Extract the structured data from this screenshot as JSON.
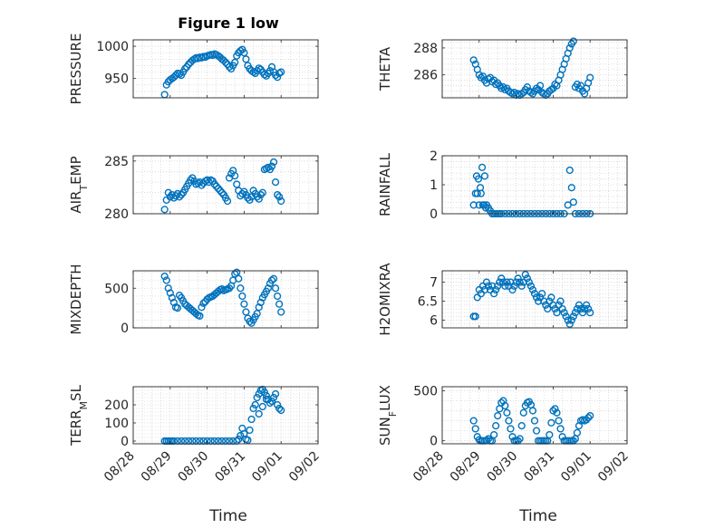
{
  "figure_title": "Figure 1 low",
  "colors": {
    "marker": "#0072BD",
    "axis": "#262626",
    "grid": "#c8c8c8"
  },
  "x_ticks": [
    "08/28",
    "08/29",
    "08/30",
    "08/31",
    "09/01",
    "09/02"
  ],
  "chart_data": [
    {
      "type": "scatter",
      "panel": 1,
      "ylabel": "PRESSURE",
      "ylim": [
        920,
        1010
      ],
      "yticks": [
        950,
        1000
      ],
      "xlim": [
        0,
        5
      ],
      "grid": "on",
      "marker": "open-circle",
      "x": [
        0.85,
        0.9,
        0.95,
        1.0,
        1.05,
        1.1,
        1.15,
        1.2,
        1.25,
        1.3,
        1.35,
        1.4,
        1.45,
        1.5,
        1.55,
        1.6,
        1.65,
        1.7,
        1.75,
        1.8,
        1.85,
        1.9,
        1.95,
        2.0,
        2.05,
        2.1,
        2.15,
        2.2,
        2.25,
        2.3,
        2.35,
        2.4,
        2.45,
        2.5,
        2.55,
        2.6,
        2.65,
        2.7,
        2.75,
        2.8,
        2.85,
        2.9,
        2.95,
        3.0,
        3.05,
        3.1,
        3.15,
        3.2,
        3.25,
        3.3,
        3.35,
        3.4,
        3.45,
        3.5,
        3.55,
        3.6,
        3.65,
        3.7,
        3.75,
        3.8,
        3.85,
        3.9,
        3.95,
        4.0
      ],
      "y": [
        925,
        940,
        945,
        948,
        950,
        952,
        955,
        958,
        957,
        955,
        960,
        965,
        968,
        972,
        975,
        978,
        980,
        982,
        981,
        983,
        982,
        984,
        983,
        985,
        986,
        987,
        986,
        988,
        987,
        985,
        983,
        980,
        978,
        975,
        972,
        968,
        965,
        970,
        975,
        985,
        990,
        993,
        995,
        990,
        980,
        970,
        965,
        962,
        960,
        958,
        962,
        966,
        964,
        960,
        956,
        954,
        958,
        962,
        968,
        960,
        955,
        952,
        958,
        960
      ]
    },
    {
      "type": "scatter",
      "panel": 2,
      "ylabel": "THETA",
      "ylim": [
        284.3,
        288.6
      ],
      "yticks": [
        286,
        288
      ],
      "xlim": [
        0,
        5
      ],
      "grid": "on",
      "marker": "open-circle",
      "x": [
        0.85,
        0.9,
        0.95,
        1.0,
        1.05,
        1.1,
        1.15,
        1.2,
        1.25,
        1.3,
        1.35,
        1.4,
        1.45,
        1.5,
        1.55,
        1.6,
        1.65,
        1.7,
        1.75,
        1.8,
        1.85,
        1.9,
        1.95,
        2.0,
        2.05,
        2.1,
        2.15,
        2.2,
        2.25,
        2.3,
        2.35,
        2.4,
        2.45,
        2.5,
        2.55,
        2.6,
        2.65,
        2.7,
        2.75,
        2.8,
        2.85,
        2.9,
        2.95,
        3.0,
        3.05,
        3.1,
        3.15,
        3.2,
        3.25,
        3.3,
        3.35,
        3.4,
        3.45,
        3.5,
        3.55,
        3.6,
        3.65,
        3.7,
        3.75,
        3.8,
        3.85,
        3.9,
        3.95,
        4.0
      ],
      "y": [
        287.1,
        286.8,
        286.4,
        286.0,
        285.8,
        285.9,
        285.6,
        285.4,
        285.7,
        285.8,
        285.5,
        285.6,
        285.3,
        285.4,
        285.2,
        285.0,
        285.1,
        284.9,
        285.0,
        284.8,
        284.7,
        284.6,
        284.7,
        284.5,
        284.6,
        284.5,
        284.6,
        284.7,
        284.9,
        285.1,
        284.8,
        284.7,
        284.6,
        284.8,
        285.0,
        284.9,
        285.2,
        284.7,
        284.6,
        284.5,
        284.6,
        284.8,
        284.9,
        285.0,
        285.3,
        285.2,
        285.6,
        286.0,
        286.4,
        286.8,
        287.2,
        287.6,
        288.0,
        288.3,
        288.5,
        285.1,
        285.3,
        285.0,
        285.2,
        284.8,
        284.6,
        285.0,
        285.4,
        285.8
      ]
    },
    {
      "type": "scatter",
      "panel": 3,
      "ylabel": "AIR_TEMP",
      "ylim": [
        280,
        285.5
      ],
      "yticks": [
        280,
        285
      ],
      "xlim": [
        0,
        5
      ],
      "grid": "on",
      "marker": "open-circle",
      "x": [
        0.85,
        0.9,
        0.95,
        1.0,
        1.05,
        1.1,
        1.15,
        1.2,
        1.25,
        1.3,
        1.35,
        1.4,
        1.45,
        1.5,
        1.55,
        1.6,
        1.65,
        1.7,
        1.75,
        1.8,
        1.85,
        1.9,
        1.95,
        2.0,
        2.05,
        2.1,
        2.15,
        2.2,
        2.25,
        2.3,
        2.35,
        2.4,
        2.45,
        2.5,
        2.55,
        2.6,
        2.65,
        2.7,
        2.75,
        2.8,
        2.85,
        2.9,
        2.95,
        3.0,
        3.05,
        3.1,
        3.15,
        3.2,
        3.25,
        3.3,
        3.35,
        3.4,
        3.45,
        3.5,
        3.55,
        3.6,
        3.65,
        3.7,
        3.75,
        3.8,
        3.85,
        3.9,
        3.95,
        4.0
      ],
      "y": [
        280.4,
        281.3,
        282.0,
        281.6,
        281.8,
        281.5,
        281.7,
        281.9,
        281.6,
        281.8,
        282.0,
        282.3,
        282.6,
        282.9,
        283.2,
        283.4,
        283.1,
        282.8,
        282.9,
        283.0,
        282.7,
        282.9,
        283.1,
        283.2,
        283.0,
        283.2,
        283.1,
        282.8,
        282.6,
        282.4,
        282.2,
        282.0,
        281.8,
        281.5,
        281.2,
        283.4,
        283.8,
        284.1,
        283.6,
        282.8,
        282.2,
        281.7,
        281.9,
        282.1,
        281.8,
        281.5,
        281.3,
        281.6,
        282.2,
        281.9,
        281.6,
        281.4,
        281.8,
        282.0,
        284.2,
        284.3,
        284.4,
        284.2,
        284.5,
        284.9,
        283.0,
        281.8,
        281.6,
        281.2
      ]
    },
    {
      "type": "scatter",
      "panel": 4,
      "ylabel": "RAINFALL",
      "ylim": [
        0,
        2
      ],
      "yticks": [
        0,
        1,
        2
      ],
      "xlim": [
        0,
        5
      ],
      "grid": "on",
      "marker": "open-circle",
      "x": [
        0.85,
        0.9,
        0.93,
        0.95,
        0.98,
        1.0,
        1.03,
        1.05,
        1.08,
        1.1,
        1.13,
        1.15,
        1.18,
        1.2,
        1.25,
        1.3,
        1.35,
        1.4,
        1.45,
        1.5,
        1.55,
        1.6,
        1.7,
        1.8,
        1.9,
        2.0,
        2.1,
        2.2,
        2.3,
        2.4,
        2.5,
        2.6,
        2.7,
        2.8,
        2.9,
        3.0,
        3.1,
        3.2,
        3.3,
        3.4,
        3.45,
        3.5,
        3.55,
        3.6,
        3.7,
        3.8,
        3.9,
        4.0
      ],
      "y": [
        0.3,
        0.7,
        1.3,
        0.7,
        1.2,
        0.3,
        0.9,
        0.7,
        1.6,
        0.3,
        0.3,
        1.3,
        0.2,
        0.3,
        0.2,
        0.1,
        0,
        0,
        0,
        0,
        0,
        0,
        0,
        0,
        0,
        0,
        0,
        0,
        0,
        0,
        0,
        0,
        0,
        0,
        0,
        0,
        0,
        0,
        0,
        0.3,
        1.5,
        0.9,
        0.4,
        0,
        0,
        0,
        0,
        0
      ]
    },
    {
      "type": "scatter",
      "panel": 5,
      "ylabel": "MIXDEPTH",
      "ylim": [
        0,
        720
      ],
      "yticks": [
        0,
        500
      ],
      "xlim": [
        0,
        5
      ],
      "grid": "on",
      "marker": "open-circle",
      "x": [
        0.85,
        0.9,
        0.95,
        1.0,
        1.05,
        1.1,
        1.15,
        1.2,
        1.25,
        1.3,
        1.35,
        1.4,
        1.45,
        1.5,
        1.55,
        1.6,
        1.65,
        1.7,
        1.75,
        1.8,
        1.85,
        1.9,
        1.95,
        2.0,
        2.05,
        2.1,
        2.15,
        2.2,
        2.25,
        2.3,
        2.35,
        2.4,
        2.45,
        2.5,
        2.55,
        2.6,
        2.65,
        2.7,
        2.75,
        2.8,
        2.85,
        2.9,
        2.95,
        3.0,
        3.05,
        3.1,
        3.15,
        3.2,
        3.25,
        3.3,
        3.35,
        3.4,
        3.45,
        3.5,
        3.55,
        3.6,
        3.65,
        3.7,
        3.75,
        3.8,
        3.85,
        3.9,
        3.95,
        4.0
      ],
      "y": [
        650,
        600,
        500,
        440,
        380,
        320,
        260,
        250,
        410,
        380,
        340,
        300,
        280,
        260,
        240,
        220,
        200,
        180,
        160,
        150,
        260,
        310,
        330,
        360,
        380,
        390,
        400,
        420,
        440,
        460,
        480,
        490,
        470,
        480,
        490,
        500,
        530,
        600,
        680,
        700,
        620,
        500,
        400,
        300,
        200,
        120,
        80,
        60,
        100,
        140,
        180,
        260,
        320,
        380,
        420,
        460,
        500,
        560,
        600,
        620,
        500,
        400,
        300,
        200
      ]
    },
    {
      "type": "scatter",
      "panel": 6,
      "ylabel": "H2OMIXRA",
      "ylim": [
        5.8,
        7.3
      ],
      "yticks": [
        6,
        6.5,
        7
      ],
      "xlim": [
        0,
        5
      ],
      "grid": "on",
      "marker": "open-circle",
      "x": [
        0.85,
        0.9,
        0.95,
        1.0,
        1.05,
        1.1,
        1.15,
        1.2,
        1.25,
        1.3,
        1.35,
        1.4,
        1.45,
        1.5,
        1.55,
        1.6,
        1.65,
        1.7,
        1.75,
        1.8,
        1.85,
        1.9,
        1.95,
        2.0,
        2.05,
        2.1,
        2.15,
        2.2,
        2.25,
        2.3,
        2.35,
        2.4,
        2.45,
        2.5,
        2.55,
        2.6,
        2.65,
        2.7,
        2.75,
        2.8,
        2.85,
        2.9,
        2.95,
        3.0,
        3.05,
        3.1,
        3.15,
        3.2,
        3.25,
        3.3,
        3.35,
        3.4,
        3.45,
        3.5,
        3.55,
        3.6,
        3.65,
        3.7,
        3.75,
        3.8,
        3.85,
        3.9,
        3.95,
        4.0
      ],
      "y": [
        6.1,
        6.1,
        6.6,
        6.8,
        6.7,
        6.9,
        6.8,
        7.0,
        6.9,
        6.8,
        6.9,
        6.7,
        6.8,
        6.9,
        7.0,
        7.1,
        7.0,
        6.9,
        7.0,
        6.9,
        7.0,
        6.8,
        6.9,
        7.0,
        7.1,
        7.0,
        6.9,
        7.0,
        7.2,
        7.1,
        7.0,
        6.9,
        6.8,
        6.7,
        6.6,
        6.5,
        6.6,
        6.7,
        6.5,
        6.4,
        6.3,
        6.5,
        6.6,
        6.4,
        6.3,
        6.2,
        6.4,
        6.5,
        6.3,
        6.2,
        6.1,
        6.0,
        5.9,
        6.0,
        6.1,
        6.2,
        6.3,
        6.4,
        6.3,
        6.2,
        6.3,
        6.4,
        6.3,
        6.2
      ]
    },
    {
      "type": "scatter",
      "panel": 7,
      "ylabel": "TERR_MSL",
      "ylim": [
        -15,
        300
      ],
      "yticks": [
        0,
        100,
        200
      ],
      "xlim": [
        0,
        5
      ],
      "grid": "on",
      "marker": "open-circle",
      "x": [
        0.85,
        0.9,
        0.95,
        1.0,
        1.05,
        1.1,
        1.2,
        1.3,
        1.4,
        1.5,
        1.6,
        1.7,
        1.8,
        1.9,
        2.0,
        2.1,
        2.2,
        2.3,
        2.4,
        2.5,
        2.6,
        2.7,
        2.8,
        2.85,
        2.9,
        2.95,
        3.0,
        3.05,
        3.1,
        3.15,
        3.2,
        3.25,
        3.3,
        3.35,
        3.4,
        3.45,
        3.5,
        3.55,
        3.6,
        3.65,
        3.7,
        3.75,
        3.8,
        3.85,
        3.9,
        3.95,
        4.0,
        3.4,
        3.5,
        3.6
      ],
      "y": [
        0,
        0,
        0,
        0,
        0,
        0,
        0,
        0,
        0,
        0,
        0,
        0,
        0,
        0,
        0,
        0,
        0,
        0,
        0,
        0,
        0,
        0,
        0,
        10,
        30,
        70,
        40,
        10,
        5,
        60,
        120,
        180,
        200,
        240,
        260,
        280,
        285,
        270,
        250,
        230,
        210,
        220,
        240,
        260,
        200,
        180,
        170,
        150,
        190,
        230
      ]
    },
    {
      "type": "scatter",
      "panel": 8,
      "ylabel": "SUN_FLUX",
      "ylim": [
        -30,
        540
      ],
      "yticks": [
        0,
        500
      ],
      "xlim": [
        0,
        5
      ],
      "grid": "on",
      "marker": "open-circle",
      "x": [
        0.85,
        0.9,
        0.95,
        1.0,
        1.05,
        1.1,
        1.15,
        1.2,
        1.25,
        1.3,
        1.35,
        1.4,
        1.45,
        1.5,
        1.55,
        1.6,
        1.65,
        1.7,
        1.75,
        1.8,
        1.85,
        1.9,
        1.95,
        2.0,
        2.05,
        2.1,
        2.15,
        2.2,
        2.25,
        2.3,
        2.35,
        2.4,
        2.45,
        2.5,
        2.55,
        2.6,
        2.65,
        2.7,
        2.75,
        2.8,
        2.85,
        2.9,
        2.95,
        3.0,
        3.05,
        3.1,
        3.15,
        3.2,
        3.25,
        3.3,
        3.35,
        3.4,
        3.45,
        3.5,
        3.55,
        3.6,
        3.65,
        3.7,
        3.75,
        3.8,
        3.85,
        3.9,
        3.95,
        4.0
      ],
      "y": [
        200,
        120,
        40,
        10,
        0,
        0,
        0,
        5,
        20,
        0,
        0,
        60,
        150,
        250,
        320,
        380,
        400,
        350,
        280,
        200,
        120,
        40,
        0,
        0,
        0,
        20,
        150,
        280,
        350,
        380,
        390,
        360,
        300,
        200,
        100,
        0,
        0,
        0,
        0,
        0,
        0,
        60,
        180,
        300,
        320,
        280,
        200,
        120,
        40,
        0,
        0,
        0,
        0,
        0,
        0,
        20,
        80,
        150,
        200,
        210,
        200,
        210,
        230,
        250
      ]
    }
  ],
  "xlabels": [
    "Time",
    "Time"
  ]
}
